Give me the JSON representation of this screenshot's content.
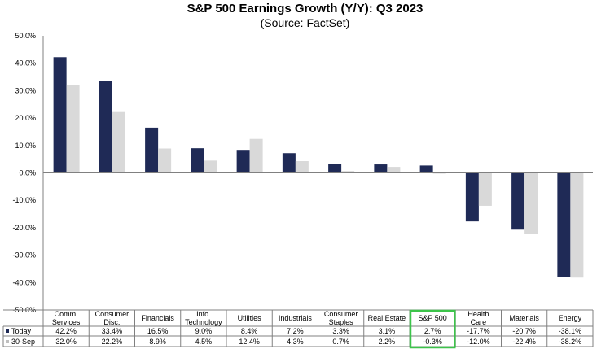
{
  "chart_data": {
    "type": "bar",
    "title": "S&P 500 Earnings Growth (Y/Y): Q3 2023",
    "subtitle": "(Source: FactSet)",
    "categories": [
      [
        "Comm.",
        "Services"
      ],
      [
        "Consumer",
        "Disc."
      ],
      [
        "Financials"
      ],
      [
        "Info.",
        "Technology"
      ],
      [
        "Utilities"
      ],
      [
        "Industrials"
      ],
      [
        "Consumer",
        "Staples"
      ],
      [
        "Real Estate"
      ],
      [
        "S&P 500"
      ],
      [
        "Health",
        "Care"
      ],
      [
        "Materials"
      ],
      [
        "Energy"
      ]
    ],
    "series": [
      {
        "name": "Today",
        "color": "#1f2a56",
        "values": [
          42.2,
          33.4,
          16.5,
          9.0,
          8.4,
          7.2,
          3.3,
          3.1,
          2.7,
          -17.7,
          -20.7,
          -38.1
        ],
        "labels": [
          "42.2%",
          "33.4%",
          "16.5%",
          "9.0%",
          "8.4%",
          "7.2%",
          "3.3%",
          "3.1%",
          "2.7%",
          "-17.7%",
          "-20.7%",
          "-38.1%"
        ]
      },
      {
        "name": "30-Sep",
        "color": "#d9d9d9",
        "values": [
          32.0,
          22.2,
          8.9,
          4.5,
          12.4,
          4.3,
          0.7,
          2.2,
          -0.3,
          -12.0,
          -22.4,
          -38.2
        ],
        "labels": [
          "32.0%",
          "22.2%",
          "8.9%",
          "4.5%",
          "12.4%",
          "4.3%",
          "0.7%",
          "2.2%",
          "-0.3%",
          "-12.0%",
          "-22.4%",
          "-38.2%"
        ]
      }
    ],
    "ylim": [
      -50,
      50
    ],
    "yticks": [
      50,
      40,
      30,
      20,
      10,
      0,
      -10,
      -20,
      -30,
      -40,
      -50
    ],
    "ytick_labels": [
      "50.0%",
      "40.0%",
      "30.0%",
      "20.0%",
      "10.0%",
      "0.0%",
      "-10.0%",
      "-20.0%",
      "-30.0%",
      "-40.0%",
      "-50.0%"
    ],
    "highlight_category": "S&P 500",
    "highlight_color": "#3cc44a",
    "grid": false,
    "data_table": true
  }
}
